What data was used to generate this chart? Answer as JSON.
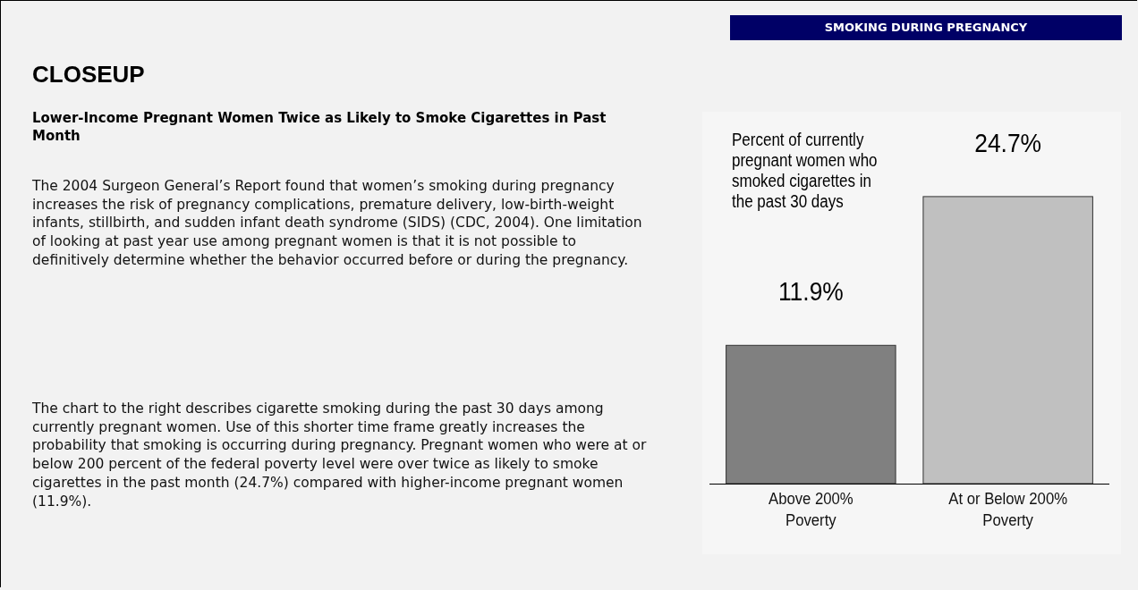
{
  "chart_data": {
    "type": "bar",
    "title": "CLOSEUP",
    "subtitle": "Lower-Income Pregnant Women Twice as Likely to Smoke Cigarettes in Past Month",
    "ylabel": "Percent of currently pregnant women who smoked cigarettes in the past 30 days",
    "annotations": [
      "SMOKING DURING PREGNANCY",
      "The 2004 Surgeon General’s Report found that women’s smoking during pregnancy increases the risk of pregnancy complications, premature delivery, low-birth-weight infants, stillbirth, and sudden infant death syndrome (SIDS) (CDC, 2004). One limitation of looking at past year use among pregnant women is that it is not possible to definitively determine whether the behavior occurred before or during the pregnancy.",
      "The chart to the right describes cigarette smoking during the past 30 days among currently pregnant women. Use of this shorter time frame greatly increases the probability that smoking is occurring during pregnancy. Pregnant women who were at or below 200 percent of the federal poverty level were over twice as likely to smoke cigarettes in the past month (24.7%) compared with higher-income pregnant women (11.9%)."
    ],
    "categories": [
      "Above 200% Poverty",
      "At or Below 200% Poverty"
    ],
    "values": [
      11.9,
      24.7
    ],
    "colors": [
      "#808080",
      "#c0c0c0"
    ],
    "value_labels": [
      "11.9%",
      "24.7%"
    ],
    "ylim": [
      0,
      32
    ],
    "tick_labels": "x"
  }
}
